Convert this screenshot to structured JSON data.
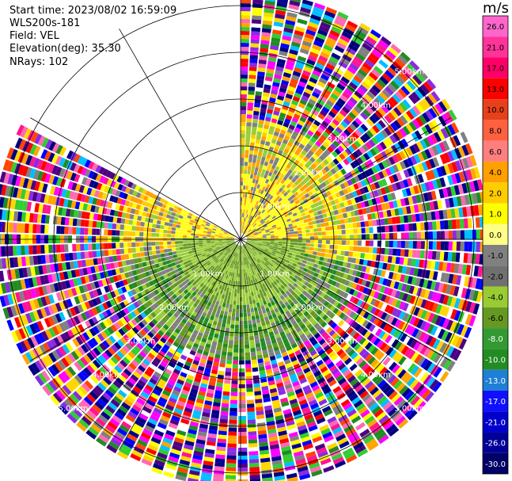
{
  "header": {
    "start_time": "Start time: 2023/08/02 16:59:09",
    "instrument": "WLS200s-181",
    "field": "Field: VEL",
    "elevation": "Elevation(deg): 35.30",
    "nrays": "NRays: 102"
  },
  "colorbar": {
    "unit": "m/s",
    "ticks": [
      "26.0",
      "21.0",
      "17.0",
      "13.0",
      "10.0",
      "8.0",
      "6.0",
      "4.0",
      "2.0",
      "1.0",
      "0.0",
      "-1.0",
      "-2.0",
      "-4.0",
      "-6.0",
      "-8.0",
      "-10.0",
      "-13.0",
      "-17.0",
      "-21.0",
      "-26.0",
      "-30.0"
    ],
    "colors": [
      "#ff66cc",
      "#ff3399",
      "#ff0066",
      "#ff0000",
      "#e8401a",
      "#ff6040",
      "#ff7f7f",
      "#ffa000",
      "#ffcc00",
      "#ffff00",
      "#ffff88",
      "#808080",
      "#707070",
      "#99cc33",
      "#669922",
      "#339933",
      "#228b22",
      "#1e7fd4",
      "#1010ff",
      "#0000cc",
      "#000099",
      "#000066",
      "#000044"
    ]
  },
  "chart_data": {
    "type": "heatmap",
    "projection": "polar PPI scan",
    "field": "VEL",
    "units": "m/s",
    "nrays": 102,
    "elevation_deg": 35.3,
    "range_rings_km": [
      1.0,
      2.0,
      3.0,
      4.0,
      5.0
    ],
    "ring_labels": [
      "1.00km",
      "2.00km",
      "3.00km",
      "4.00km",
      "5.00km"
    ],
    "value_range": [
      -30.0,
      26.0
    ],
    "grid": true,
    "colorbar_position": "right"
  }
}
